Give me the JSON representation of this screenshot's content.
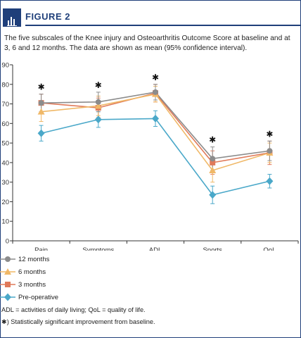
{
  "figure": {
    "label": "FIGURE 2"
  },
  "caption": "The five subscales of the Knee injury and Osteoarthritis Outcome Score at baseline and at 3, 6 and 12 months. The data are shown as mean (95% confidence interval).",
  "footnotes": {
    "abbrev": "ADL = activities of daily living; QoL = quality of life.",
    "significance": "✱) Statistically significant improvement from baseline."
  },
  "chart_data": {
    "type": "line",
    "categories": [
      "Pain",
      "Symptoms",
      "ADL",
      "Sports",
      "QoL"
    ],
    "ylim": [
      0,
      90
    ],
    "yticks": [
      0,
      10,
      20,
      30,
      40,
      50,
      60,
      70,
      80,
      90
    ],
    "grid": false,
    "legend_position": "bottom-left",
    "significance_marker": "✱",
    "significant": [
      true,
      true,
      true,
      true,
      true
    ],
    "series": [
      {
        "name": "12 months",
        "color": "#8c8c8c",
        "marker": "circle",
        "values": [
          70.5,
          71,
          76,
          42,
          46
        ],
        "ci_low": [
          66,
          66,
          72,
          36,
          41
        ],
        "ci_high": [
          75,
          76,
          80,
          48,
          51
        ]
      },
      {
        "name": "6 months",
        "color": "#f0b867",
        "marker": "triangle",
        "values": [
          66,
          69,
          75,
          36,
          45
        ],
        "ci_low": [
          61,
          64,
          71,
          30,
          40
        ],
        "ci_high": [
          71,
          74,
          79,
          42,
          50
        ]
      },
      {
        "name": "3 months",
        "color": "#e07a5a",
        "marker": "square",
        "values": [
          70.5,
          68,
          75.5,
          40,
          45
        ],
        "ci_low": [
          66,
          63,
          71,
          34,
          39
        ],
        "ci_high": [
          75,
          73,
          80,
          46,
          51
        ]
      },
      {
        "name": "Pre-operative",
        "color": "#4aa8c9",
        "marker": "diamond",
        "values": [
          55,
          62,
          62.5,
          23.5,
          30.5
        ],
        "ci_low": [
          51,
          58,
          58.5,
          19,
          27
        ],
        "ci_high": [
          59,
          66,
          66.5,
          28,
          34
        ]
      }
    ]
  }
}
